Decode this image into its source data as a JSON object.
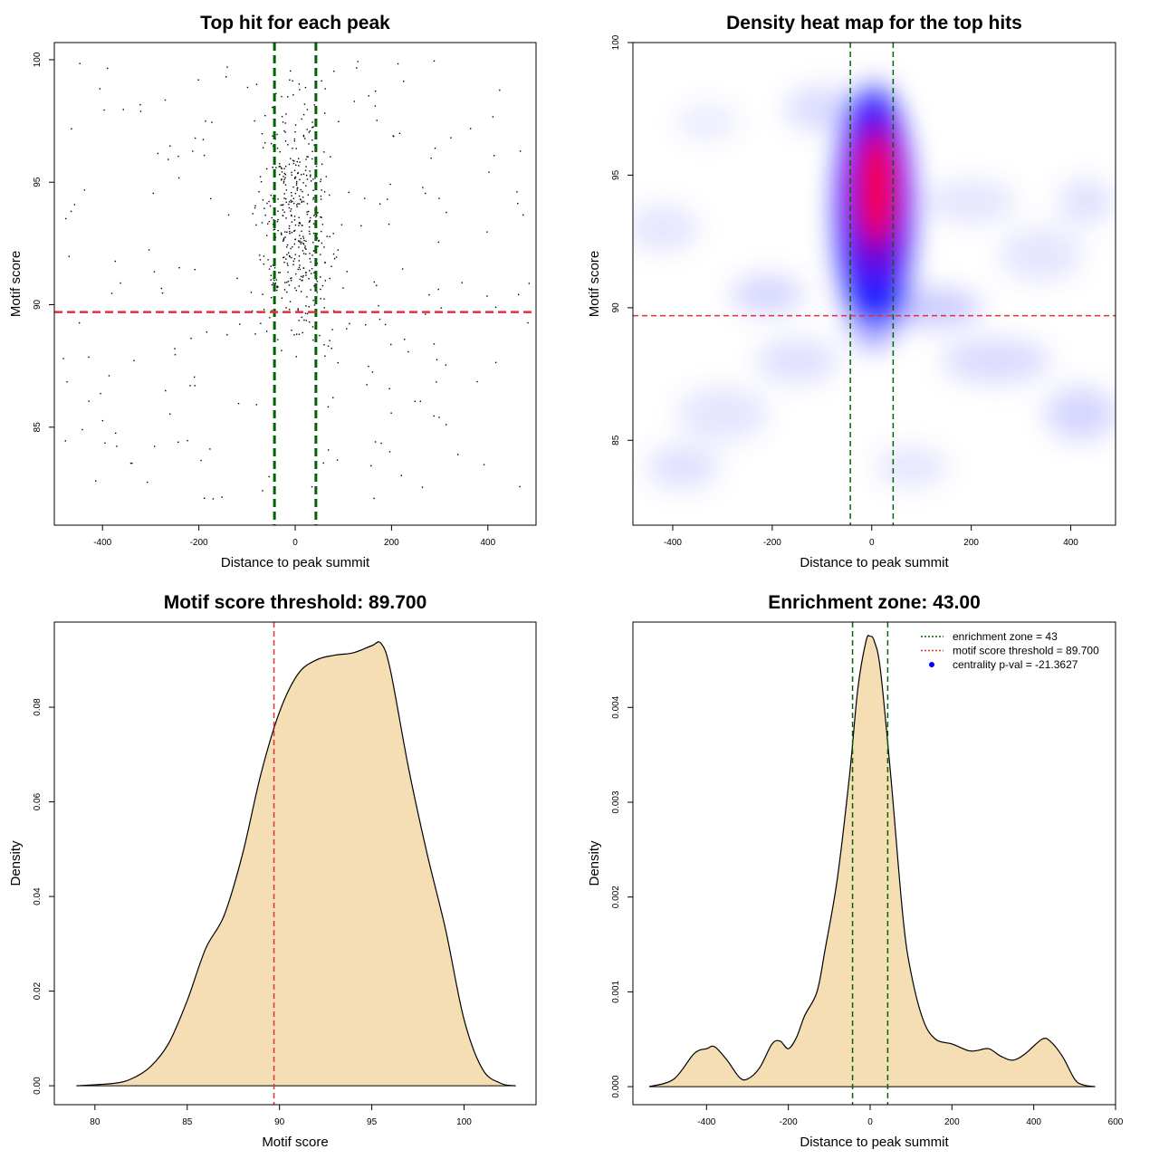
{
  "panels": [
    {
      "title": "Top hit for each peak",
      "xlabel": "Distance to peak summit",
      "ylabel": "Motif score",
      "xticks": [
        "-400",
        "-200",
        "0",
        "200",
        "400"
      ],
      "yticks": [
        "85",
        "90",
        "95",
        "100"
      ]
    },
    {
      "title": "Density heat map for the top hits",
      "xlabel": "Distance to peak summit",
      "ylabel": "Motif score",
      "xticks": [
        "-400",
        "-200",
        "0",
        "200",
        "400"
      ],
      "yticks": [
        "85",
        "90",
        "95",
        "100"
      ]
    },
    {
      "title": "Motif score threshold: 89.700",
      "xlabel": "Motif score",
      "ylabel": "Density",
      "xticks": [
        "80",
        "85",
        "90",
        "95",
        "100"
      ],
      "yticks": [
        "0.00",
        "0.02",
        "0.04",
        "0.06",
        "0.08"
      ]
    },
    {
      "title": "Enrichment zone: 43.00",
      "xlabel": "Distance to peak summit",
      "ylabel": "Density",
      "xticks": [
        "-400",
        "-200",
        "0",
        "200",
        "400",
        "600"
      ],
      "yticks": [
        "0.000",
        "0.001",
        "0.002",
        "0.003",
        "0.004"
      ],
      "legend": [
        "enrichment zone = 43",
        "motif score threshold = 89.700",
        "centrality p-val = -21.3627"
      ]
    }
  ],
  "colors": {
    "enrichment_zone": "#006400",
    "threshold": "#e0303a",
    "density_fill": "#f5deb3",
    "points": "#000000",
    "heat_low": "#ffffff",
    "heat_mid": "#0000ff",
    "heat_high": "#ff0000"
  },
  "chart_data": [
    {
      "type": "scatter",
      "title": "Top hit for each peak",
      "xlabel": "Distance to peak summit",
      "ylabel": "Motif score",
      "xlim": [
        -500,
        500
      ],
      "ylim": [
        81,
        100.7
      ],
      "vlines": [
        -43,
        43
      ],
      "hline": 89.7,
      "point_count": 650,
      "note_points": "dense cloud centered near x=0 (sd ~60), sparse background uniform over x in [-490, 490]; scores 82-100"
    },
    {
      "type": "heatmap",
      "title": "Density heat map for the top hits",
      "xlabel": "Distance to peak summit",
      "ylabel": "Motif score",
      "xlim": [
        -480,
        490
      ],
      "ylim": [
        81.8,
        100
      ],
      "vlines": [
        -43,
        43
      ],
      "hline": 89.7,
      "hotspot": {
        "x": 10,
        "y": 94.5
      },
      "color_scale": [
        "white",
        "blue",
        "red"
      ]
    },
    {
      "type": "area",
      "title": "Motif score threshold: 89.700",
      "xlabel": "Motif score",
      "ylabel": "Density",
      "xlim": [
        77.8,
        103.9
      ],
      "ylim": [
        -0.004,
        0.098
      ],
      "vline": 89.7,
      "x": [
        79,
        81,
        82,
        83,
        84,
        85,
        86,
        87,
        88,
        89,
        90,
        91,
        92,
        93,
        94,
        95,
        95.5,
        96,
        97,
        98,
        99,
        100,
        101,
        102,
        102.8
      ],
      "y": [
        0.0,
        0.0005,
        0.0015,
        0.004,
        0.009,
        0.018,
        0.029,
        0.036,
        0.049,
        0.066,
        0.079,
        0.087,
        0.09,
        0.091,
        0.0915,
        0.093,
        0.0935,
        0.088,
        0.067,
        0.049,
        0.033,
        0.014,
        0.0035,
        0.0005,
        0.0
      ]
    },
    {
      "type": "area",
      "title": "Enrichment zone: 43.00",
      "xlabel": "Distance to peak summit",
      "ylabel": "Density",
      "xlim": [
        -580,
        600
      ],
      "ylim": [
        -0.00019,
        0.0049
      ],
      "vlines": [
        -43,
        43
      ],
      "x": [
        -540,
        -480,
        -430,
        -400,
        -380,
        -350,
        -320,
        -300,
        -270,
        -240,
        -220,
        -200,
        -180,
        -160,
        -130,
        -110,
        -80,
        -50,
        -30,
        -10,
        0,
        10,
        25,
        50,
        80,
        100,
        130,
        160,
        200,
        240,
        260,
        290,
        320,
        350,
        380,
        420,
        440,
        470,
        500,
        520,
        550
      ],
      "y": [
        0.0,
        8e-05,
        0.00035,
        0.0004,
        0.00042,
        0.00028,
        0.0001,
        8e-05,
        0.0002,
        0.00045,
        0.00048,
        0.0004,
        0.00052,
        0.00075,
        0.001,
        0.00145,
        0.0022,
        0.0033,
        0.0042,
        0.0047,
        0.00475,
        0.0047,
        0.0044,
        0.0033,
        0.0018,
        0.0012,
        0.0007,
        0.0005,
        0.00045,
        0.00038,
        0.00038,
        0.0004,
        0.00032,
        0.00028,
        0.00035,
        0.0005,
        0.00048,
        0.00032,
        8e-05,
        2e-05,
        0.0
      ],
      "legend": [
        "enrichment zone = 43",
        "motif score threshold = 89.700",
        "centrality p-val = -21.3627"
      ]
    }
  ]
}
